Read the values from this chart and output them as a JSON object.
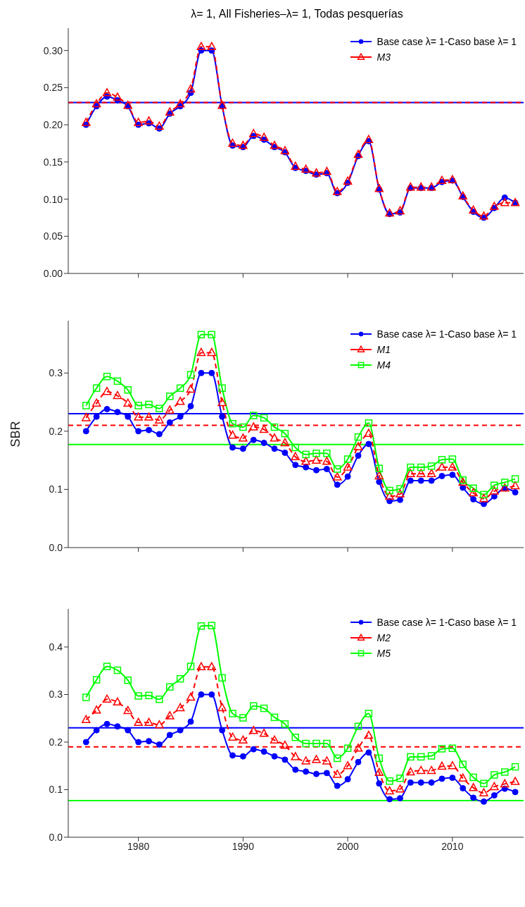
{
  "chart_data": [
    {
      "type": "line",
      "title": "λ= 1,  All Fisheries–λ= 1, Todas pesquerías",
      "x": [
        1975,
        1976,
        1977,
        1978,
        1979,
        1980,
        1981,
        1982,
        1983,
        1984,
        1985,
        1986,
        1987,
        1988,
        1989,
        1990,
        1991,
        1992,
        1993,
        1994,
        1995,
        1996,
        1997,
        1998,
        1999,
        2000,
        2001,
        2002,
        2003,
        2004,
        2005,
        2006,
        2007,
        2008,
        2009,
        2010,
        2011,
        2012,
        2013,
        2014,
        2015,
        2016
      ],
      "series": [
        {
          "name": "Base case λ= 1-Caso base  λ= 1",
          "color": "#0000ff",
          "marker": "circle",
          "line_style": "solid",
          "values": [
            0.2,
            0.225,
            0.238,
            0.233,
            0.225,
            0.2,
            0.202,
            0.195,
            0.215,
            0.225,
            0.243,
            0.3,
            0.3,
            0.225,
            0.172,
            0.17,
            0.185,
            0.18,
            0.17,
            0.163,
            0.142,
            0.138,
            0.133,
            0.135,
            0.108,
            0.122,
            0.158,
            0.178,
            0.113,
            0.08,
            0.082,
            0.115,
            0.115,
            0.115,
            0.123,
            0.125,
            0.103,
            0.083,
            0.075,
            0.088,
            0.102,
            0.095
          ]
        },
        {
          "name": "M3",
          "color": "#ff0000",
          "marker": "triangle",
          "line_style": "dashed",
          "values": [
            0.203,
            0.228,
            0.243,
            0.237,
            0.226,
            0.203,
            0.205,
            0.198,
            0.217,
            0.228,
            0.248,
            0.305,
            0.305,
            0.226,
            0.175,
            0.172,
            0.188,
            0.183,
            0.172,
            0.165,
            0.144,
            0.14,
            0.135,
            0.137,
            0.11,
            0.124,
            0.16,
            0.18,
            0.114,
            0.081,
            0.084,
            0.116,
            0.116,
            0.116,
            0.125,
            0.126,
            0.104,
            0.085,
            0.077,
            0.09,
            0.095,
            0.095
          ]
        }
      ],
      "xlim": [
        1973.3,
        2016.8
      ],
      "xticks": [
        1980,
        1990,
        2000,
        2010
      ],
      "ylim": [
        0,
        0.33
      ],
      "yticks": [
        {
          "value": 0,
          "label": "0.00"
        },
        {
          "value": 0.05,
          "label": "0.05"
        },
        {
          "value": 0.1,
          "label": "0.10"
        },
        {
          "value": 0.15,
          "label": "0.15"
        },
        {
          "value": 0.2,
          "label": "0.20"
        },
        {
          "value": 0.25,
          "label": "0.25"
        },
        {
          "value": 0.3,
          "label": "0.30"
        }
      ],
      "tick_labels": "y",
      "grid": false,
      "legend": "top right",
      "ref_lines": [
        {
          "axis": "y",
          "value": 0.23,
          "color": "#0000ff",
          "line_style": "solid"
        },
        {
          "axis": "y",
          "value": 0.23,
          "color": "#ff0000",
          "line_style": "dashed"
        }
      ]
    },
    {
      "type": "line",
      "ylabel": "SBR",
      "x": [
        1975,
        1976,
        1977,
        1978,
        1979,
        1980,
        1981,
        1982,
        1983,
        1984,
        1985,
        1986,
        1987,
        1988,
        1989,
        1990,
        1991,
        1992,
        1993,
        1994,
        1995,
        1996,
        1997,
        1998,
        1999,
        2000,
        2001,
        2002,
        2003,
        2004,
        2005,
        2006,
        2007,
        2008,
        2009,
        2010,
        2011,
        2012,
        2013,
        2014,
        2015,
        2016
      ],
      "series": [
        {
          "name": "Base case λ= 1-Caso base  λ= 1",
          "color": "#0000ff",
          "marker": "circle",
          "line_style": "solid",
          "values": [
            0.2,
            0.225,
            0.238,
            0.233,
            0.225,
            0.2,
            0.202,
            0.195,
            0.215,
            0.225,
            0.243,
            0.3,
            0.3,
            0.225,
            0.172,
            0.17,
            0.185,
            0.18,
            0.17,
            0.163,
            0.142,
            0.138,
            0.133,
            0.135,
            0.108,
            0.122,
            0.158,
            0.178,
            0.113,
            0.08,
            0.082,
            0.115,
            0.115,
            0.115,
            0.123,
            0.125,
            0.103,
            0.083,
            0.075,
            0.088,
            0.102,
            0.095
          ]
        },
        {
          "name": "M1",
          "color": "#ff0000",
          "marker": "triangle",
          "line_style": "dashed",
          "values": [
            0.223,
            0.248,
            0.268,
            0.261,
            0.248,
            0.224,
            0.224,
            0.219,
            0.236,
            0.251,
            0.272,
            0.335,
            0.335,
            0.249,
            0.193,
            0.188,
            0.207,
            0.203,
            0.188,
            0.18,
            0.156,
            0.148,
            0.15,
            0.148,
            0.121,
            0.138,
            0.173,
            0.196,
            0.123,
            0.088,
            0.092,
            0.127,
            0.127,
            0.127,
            0.138,
            0.138,
            0.112,
            0.094,
            0.084,
            0.097,
            0.102,
            0.106
          ]
        },
        {
          "name": "M4",
          "color": "#00ff00",
          "marker": "square",
          "line_style": "solid",
          "values": [
            0.244,
            0.274,
            0.294,
            0.286,
            0.271,
            0.244,
            0.246,
            0.239,
            0.26,
            0.274,
            0.297,
            0.366,
            0.366,
            0.274,
            0.213,
            0.207,
            0.227,
            0.223,
            0.207,
            0.196,
            0.172,
            0.16,
            0.162,
            0.162,
            0.135,
            0.152,
            0.19,
            0.214,
            0.136,
            0.098,
            0.101,
            0.138,
            0.138,
            0.14,
            0.151,
            0.152,
            0.116,
            0.102,
            0.091,
            0.107,
            0.112,
            0.118
          ]
        }
      ],
      "xlim": [
        1973.3,
        2016.8
      ],
      "xticks": [
        1980,
        1990,
        2000,
        2010
      ],
      "ylim": [
        0,
        0.39
      ],
      "yticks": [
        {
          "value": 0,
          "label": "0.0"
        },
        0.1,
        0.2,
        0.3
      ],
      "tick_labels": "y",
      "grid": false,
      "legend": "top right",
      "ref_lines": [
        {
          "axis": "y",
          "value": 0.23,
          "color": "#0000ff",
          "line_style": "solid"
        },
        {
          "axis": "y",
          "value": 0.21,
          "color": "#ff0000",
          "line_style": "dashed"
        },
        {
          "axis": "y",
          "value": 0.177,
          "color": "#00ff00",
          "line_style": "solid"
        }
      ]
    },
    {
      "type": "line",
      "x": [
        1975,
        1976,
        1977,
        1978,
        1979,
        1980,
        1981,
        1982,
        1983,
        1984,
        1985,
        1986,
        1987,
        1988,
        1989,
        1990,
        1991,
        1992,
        1993,
        1994,
        1995,
        1996,
        1997,
        1998,
        1999,
        2000,
        2001,
        2002,
        2003,
        2004,
        2005,
        2006,
        2007,
        2008,
        2009,
        2010,
        2011,
        2012,
        2013,
        2014,
        2015,
        2016
      ],
      "series": [
        {
          "name": "Base case λ= 1-Caso base  λ= 1",
          "color": "#0000ff",
          "marker": "circle",
          "line_style": "solid",
          "values": [
            0.2,
            0.225,
            0.238,
            0.233,
            0.225,
            0.2,
            0.202,
            0.195,
            0.215,
            0.225,
            0.243,
            0.3,
            0.3,
            0.225,
            0.172,
            0.17,
            0.185,
            0.18,
            0.17,
            0.163,
            0.142,
            0.138,
            0.133,
            0.135,
            0.108,
            0.122,
            0.158,
            0.178,
            0.113,
            0.08,
            0.082,
            0.115,
            0.115,
            0.115,
            0.123,
            0.125,
            0.103,
            0.083,
            0.075,
            0.088,
            0.102,
            0.095
          ]
        },
        {
          "name": "M2",
          "color": "#ff0000",
          "marker": "triangle",
          "line_style": "dashed",
          "values": [
            0.247,
            0.267,
            0.29,
            0.284,
            0.266,
            0.241,
            0.241,
            0.236,
            0.255,
            0.272,
            0.294,
            0.358,
            0.358,
            0.272,
            0.21,
            0.204,
            0.224,
            0.218,
            0.204,
            0.193,
            0.169,
            0.16,
            0.163,
            0.16,
            0.132,
            0.15,
            0.187,
            0.214,
            0.136,
            0.097,
            0.101,
            0.137,
            0.14,
            0.14,
            0.149,
            0.15,
            0.124,
            0.104,
            0.093,
            0.106,
            0.112,
            0.117
          ]
        },
        {
          "name": "M5",
          "color": "#00ff00",
          "marker": "square",
          "line_style": "solid",
          "values": [
            0.294,
            0.331,
            0.359,
            0.351,
            0.33,
            0.297,
            0.298,
            0.29,
            0.316,
            0.333,
            0.359,
            0.444,
            0.445,
            0.335,
            0.26,
            0.251,
            0.276,
            0.271,
            0.252,
            0.238,
            0.21,
            0.197,
            0.197,
            0.197,
            0.166,
            0.187,
            0.233,
            0.26,
            0.166,
            0.118,
            0.124,
            0.169,
            0.169,
            0.171,
            0.186,
            0.187,
            0.153,
            0.126,
            0.113,
            0.131,
            0.137,
            0.148
          ]
        }
      ],
      "xlim": [
        1973.3,
        2016.8
      ],
      "xticks": [
        1980,
        1990,
        2000,
        2010
      ],
      "ylim": [
        0,
        0.48
      ],
      "yticks": [
        {
          "value": 0,
          "label": "0.0"
        },
        0.1,
        0.2,
        0.3,
        0.4
      ],
      "grid": false,
      "legend": "top right",
      "ref_lines": [
        {
          "axis": "y",
          "value": 0.23,
          "color": "#0000ff",
          "line_style": "solid"
        },
        {
          "axis": "y",
          "value": 0.19,
          "color": "#ff0000",
          "line_style": "dashed"
        },
        {
          "axis": "y",
          "value": 0.077,
          "color": "#00ff00",
          "line_style": "solid"
        }
      ]
    }
  ]
}
